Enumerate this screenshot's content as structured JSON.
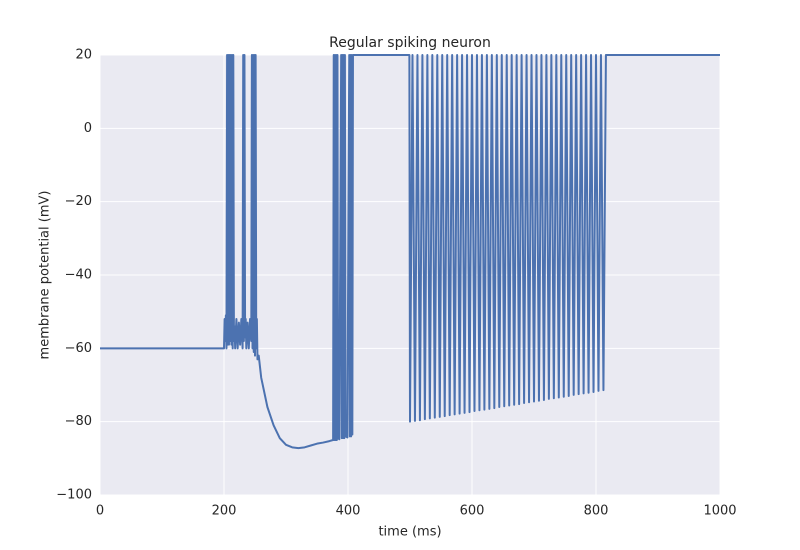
{
  "chart_data": {
    "type": "line",
    "title": "Regular spiking neuron",
    "x_label": "time (ms)",
    "y_label": "membrane potential (mV)",
    "color": "#4c72b0",
    "grid": true,
    "xlim": [
      0,
      1000
    ],
    "ylim": [
      -100,
      20
    ],
    "xticks": [
      0,
      200,
      400,
      600,
      800,
      1000
    ],
    "yticks": [
      {
        "value": -100,
        "label": "−100"
      },
      {
        "value": -80,
        "label": "−80"
      },
      {
        "value": -60,
        "label": "−60"
      },
      {
        "value": -40,
        "label": "−40"
      },
      {
        "value": -20,
        "label": "−20"
      },
      0,
      20
    ],
    "x": [
      0,
      199,
      200,
      201,
      202,
      203,
      204,
      205,
      206,
      207,
      208,
      209,
      210,
      211,
      212,
      213,
      214,
      215,
      216,
      217,
      218,
      220,
      222,
      224,
      226,
      228,
      230,
      231,
      232,
      233,
      234,
      235,
      236,
      238,
      240,
      242,
      244,
      245,
      246,
      247,
      248,
      249,
      250,
      251,
      252,
      253,
      254,
      256,
      260,
      270,
      280,
      290,
      300,
      310,
      320,
      330,
      340,
      350,
      360,
      370,
      376,
      377,
      378,
      379,
      380,
      381,
      382,
      383,
      384,
      386,
      389,
      390,
      391,
      392,
      393,
      394,
      395,
      396,
      399,
      402,
      403,
      404,
      405,
      406,
      407,
      408,
      499,
      500,
      504,
      508,
      512,
      516,
      520,
      524,
      528,
      532,
      536,
      540,
      544,
      548,
      552,
      556,
      560,
      564,
      568,
      572,
      576,
      580,
      584,
      588,
      592,
      596,
      600,
      604,
      608,
      612,
      616,
      620,
      624,
      628,
      632,
      636,
      640,
      644,
      648,
      652,
      656,
      660,
      664,
      668,
      672,
      676,
      680,
      684,
      688,
      692,
      696,
      700,
      704,
      708,
      712,
      716,
      720,
      724,
      728,
      732,
      736,
      740,
      744,
      748,
      752,
      756,
      760,
      764,
      768,
      772,
      776,
      780,
      784,
      788,
      792,
      796,
      800,
      804,
      808,
      812,
      816,
      1000
    ],
    "values": [
      -60,
      -60,
      -60,
      -52,
      -58,
      -51,
      -60,
      20,
      -59,
      20,
      -59,
      20,
      -58,
      20,
      -59,
      20,
      -60,
      20,
      -58,
      -54,
      -60,
      -52,
      -60,
      -53,
      -59,
      -52,
      -60,
      20,
      -58,
      20,
      -57,
      -52,
      -60,
      -53,
      -60,
      -52,
      -58,
      20,
      -60,
      20,
      -61,
      20,
      -62,
      20,
      -60,
      -52,
      -63,
      -62,
      -68,
      -76,
      -81,
      -84.5,
      -86.3,
      -87,
      -87.2,
      -87,
      -86.5,
      -86,
      -85.7,
      -85.3,
      -85,
      20,
      -85,
      20,
      -85,
      20,
      -85,
      20,
      -84.5,
      -84.8,
      20,
      -84.5,
      20,
      -84.5,
      20,
      -84.5,
      20,
      -84,
      -84.3,
      20,
      -84,
      20,
      -84,
      20,
      -83.5,
      20,
      20,
      -80,
      20,
      -79.8,
      20,
      -79.6,
      20,
      -79.3,
      20,
      -79.1,
      20,
      -78.9,
      20,
      -78.7,
      20,
      -78.5,
      20,
      -78.2,
      20,
      -78,
      20,
      -77.8,
      20,
      -77.6,
      20,
      -77.4,
      20,
      -77.1,
      20,
      -76.9,
      20,
      -76.7,
      20,
      -76.5,
      20,
      -76.3,
      20,
      -76,
      20,
      -75.8,
      20,
      -75.6,
      20,
      -75.4,
      20,
      -75.2,
      20,
      -74.9,
      20,
      -74.7,
      20,
      -74.5,
      20,
      -74.3,
      20,
      -74.1,
      20,
      -73.8,
      20,
      -73.6,
      20,
      -73.4,
      20,
      -73.2,
      20,
      -73,
      20,
      -72.7,
      20,
      -72.5,
      20,
      -72.3,
      20,
      -72.1,
      20,
      -71.9,
      20,
      -71.6,
      20,
      -71.4,
      20,
      20
    ]
  }
}
